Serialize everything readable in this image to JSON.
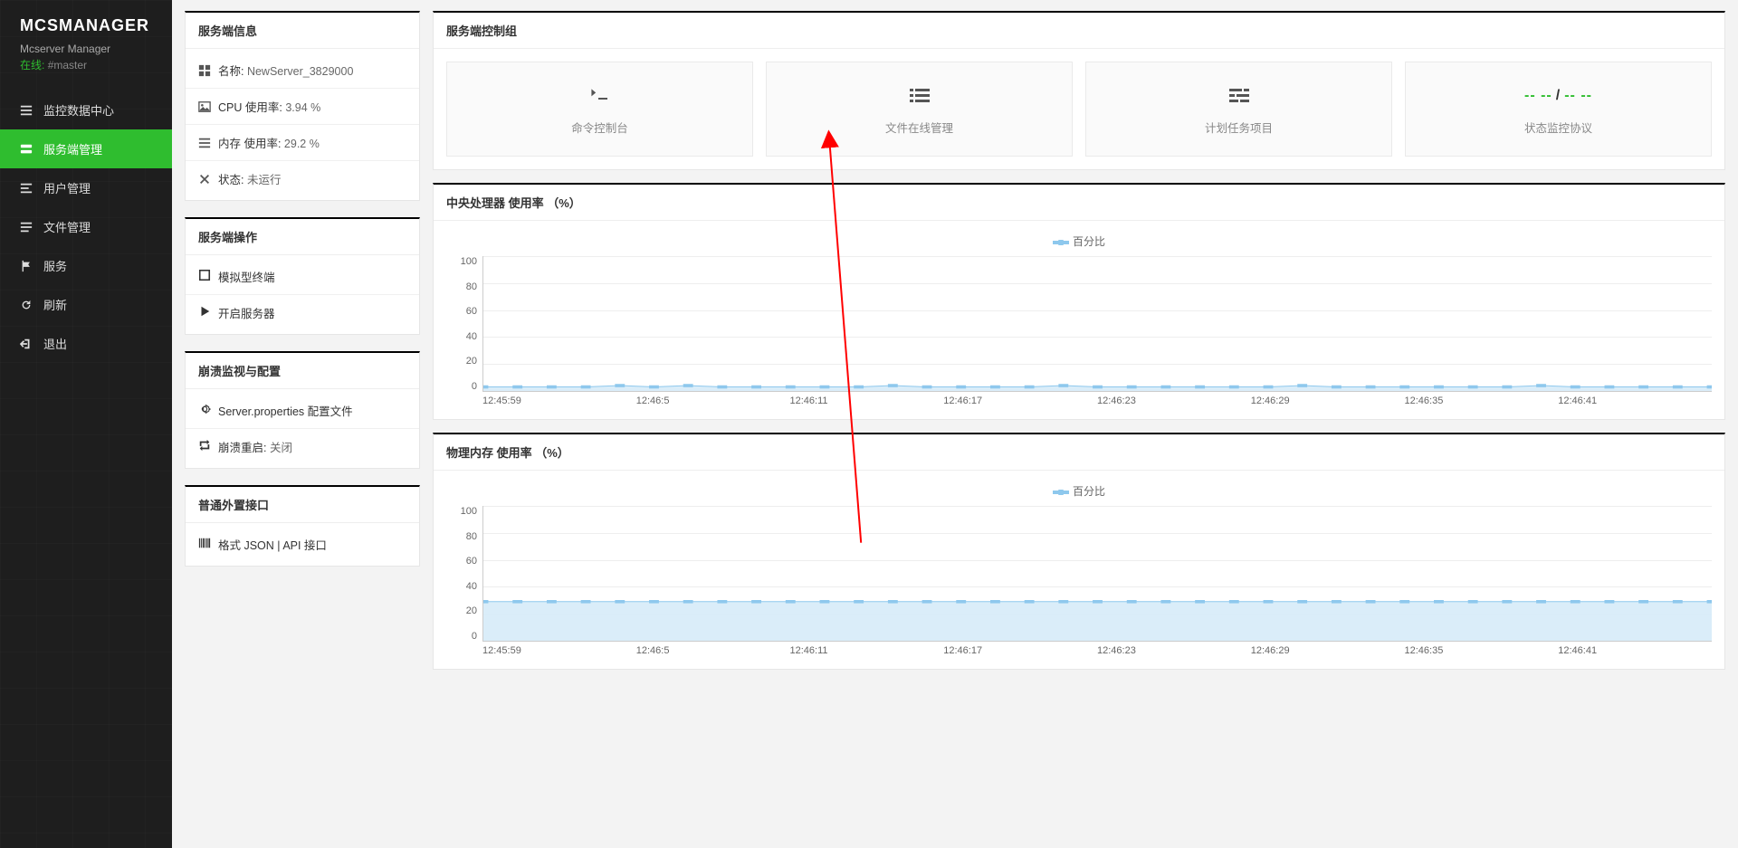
{
  "app": {
    "logo": "MCSMANAGER",
    "subtitle": "Mcserver Manager",
    "online_label": "在线:",
    "online_id": "#master"
  },
  "nav": [
    {
      "id": "monitor",
      "label": "监控数据中心",
      "icon": "bars"
    },
    {
      "id": "server",
      "label": "服务端管理",
      "icon": "server",
      "active": true
    },
    {
      "id": "users",
      "label": "用户管理",
      "icon": "users"
    },
    {
      "id": "files",
      "label": "文件管理",
      "icon": "files"
    },
    {
      "id": "services",
      "label": "服务",
      "icon": "flag"
    },
    {
      "id": "refresh",
      "label": "刷新",
      "icon": "refresh"
    },
    {
      "id": "exit",
      "label": "退出",
      "icon": "exit"
    }
  ],
  "server_info": {
    "title": "服务端信息",
    "rows": [
      {
        "icon": "grid",
        "label": "名称:",
        "value": "NewServer_3829000"
      },
      {
        "icon": "pic",
        "label": "CPU 使用率:",
        "value": "3.94 %"
      },
      {
        "icon": "bars",
        "label": "内存 使用率:",
        "value": "29.2 %"
      },
      {
        "icon": "x",
        "label": "状态:",
        "value": "未运行"
      }
    ]
  },
  "server_ops": {
    "title": "服务端操作",
    "rows": [
      {
        "icon": "square",
        "label": "模拟型终端"
      },
      {
        "icon": "play",
        "label": "开启服务器"
      }
    ]
  },
  "crash": {
    "title": "崩溃监视与配置",
    "rows": [
      {
        "icon": "gear",
        "label": "Server.properties 配置文件"
      },
      {
        "icon": "retweet",
        "label": "崩溃重启:",
        "value": "关闭"
      }
    ]
  },
  "ext_api": {
    "title": "普通外置接口",
    "rows": [
      {
        "icon": "barcode",
        "label": "格式 JSON | API 接口"
      }
    ]
  },
  "control_group": {
    "title": "服务端控制组",
    "cards": [
      {
        "id": "console",
        "icon": "terminal",
        "label": "命令控制台"
      },
      {
        "id": "fileman",
        "icon": "list",
        "label": "文件在线管理"
      },
      {
        "id": "schedule",
        "icon": "tasks",
        "label": "计划任务项目"
      },
      {
        "id": "status",
        "type": "dashes",
        "pre": "-- --",
        "post": "-- --",
        "label": "状态监控协议"
      }
    ]
  },
  "cpu_chart": {
    "title": "中央处理器 使用率 （%）",
    "legend": "百分比",
    "type": "area",
    "ylim": [
      0,
      100
    ],
    "yticks": [
      100,
      80,
      60,
      40,
      20,
      0
    ],
    "xticks": [
      "12:45:59",
      "12:46:5",
      "12:46:11",
      "12:46:17",
      "12:46:23",
      "12:46:29",
      "12:46:35",
      "12:46:41"
    ],
    "values": [
      3,
      3,
      3,
      3,
      4,
      3,
      4,
      3,
      3,
      3,
      3,
      3,
      4,
      3,
      3,
      3,
      3,
      4,
      3,
      3,
      3,
      3,
      3,
      3,
      4,
      3,
      3,
      3,
      3,
      3,
      3,
      4,
      3,
      3,
      3,
      3,
      3
    ],
    "line_color": "#8ec8ed",
    "fill_color": "#d6ebf8",
    "grid_color": "#eeeeee",
    "axis_color": "#cccccc",
    "background_color": "#ffffff"
  },
  "mem_chart": {
    "title": "物理内存 使用率 （%）",
    "legend": "百分比",
    "type": "area",
    "ylim": [
      0,
      100
    ],
    "yticks": [
      100,
      80,
      60,
      40,
      20,
      0
    ],
    "xticks": [
      "12:45:59",
      "12:46:5",
      "12:46:11",
      "12:46:17",
      "12:46:23",
      "12:46:29",
      "12:46:35",
      "12:46:41"
    ],
    "values": [
      29,
      29,
      29,
      29,
      29,
      29,
      29,
      29,
      29,
      29,
      29,
      29,
      29,
      29,
      29,
      29,
      29,
      29,
      29,
      29,
      29,
      29,
      29,
      29,
      29,
      29,
      29,
      29,
      29,
      29,
      29,
      29,
      29,
      29,
      29,
      29,
      29
    ],
    "line_color": "#8ec8ed",
    "fill_color": "#d6ebf8",
    "grid_color": "#eeeeee",
    "axis_color": "#cccccc",
    "background_color": "#ffffff"
  },
  "annotation_arrow": {
    "color": "#ff0000",
    "x1_pct": 44,
    "y1_pct": 64,
    "x2_pct": 42,
    "y2_pct": 17
  }
}
